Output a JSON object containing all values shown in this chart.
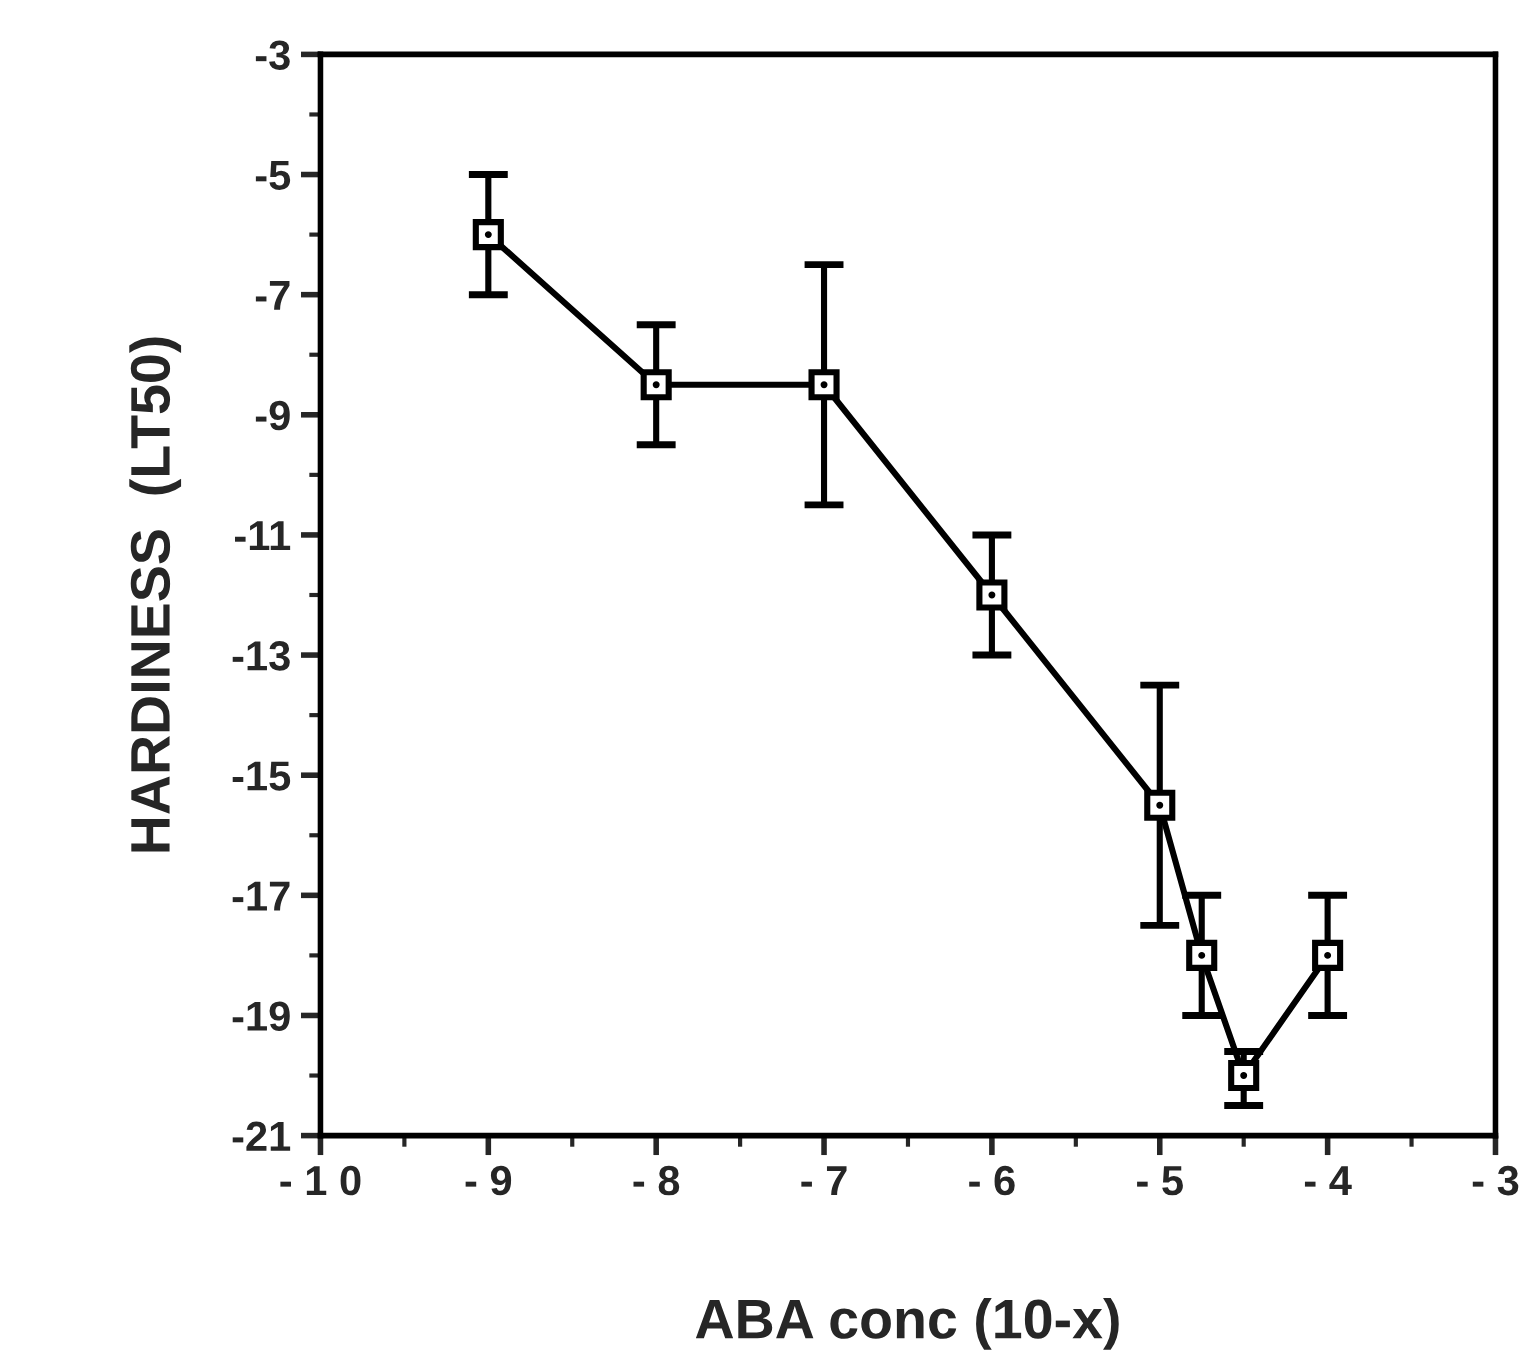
{
  "chart_data": {
    "type": "line",
    "xlabel": "ABA conc (10-x)",
    "ylabel": "HARDINESS  (LT50)",
    "x": [
      -9,
      -8,
      -7,
      -6,
      -5,
      -4.75,
      -4.5,
      -4
    ],
    "series": [
      {
        "color": "#000000",
        "values": [
          -6,
          -8.5,
          -8.5,
          -12,
          -15.5,
          -18,
          -20,
          -18
        ],
        "errors": [
          [
            -7,
            -5
          ],
          [
            -9.5,
            -7.5
          ],
          [
            -10.5,
            -6.5
          ],
          [
            -13,
            -11
          ],
          [
            -17.5,
            -13.5
          ],
          [
            -19,
            -17
          ],
          [
            -20.5,
            -19.6
          ],
          [
            -19,
            -17
          ]
        ]
      }
    ],
    "xlim": [
      -10,
      -3
    ],
    "ylim": [
      -21,
      -3
    ],
    "xticks": [
      {
        "value": -10,
        "label": "- 1 0"
      },
      {
        "value": -9,
        "label": "- 9"
      },
      {
        "value": -8,
        "label": "- 8"
      },
      {
        "value": -7,
        "label": "- 7"
      },
      {
        "value": -6,
        "label": "- 6"
      },
      {
        "value": -5,
        "label": "- 5"
      },
      {
        "value": -4,
        "label": "- 4"
      },
      {
        "value": -3,
        "label": "- 3"
      }
    ],
    "yticks": [
      -3,
      -5,
      -7,
      -9,
      -11,
      -13,
      -15,
      -17,
      -19,
      -21
    ],
    "grid": false,
    "marker": "square",
    "line_style": "solid"
  }
}
